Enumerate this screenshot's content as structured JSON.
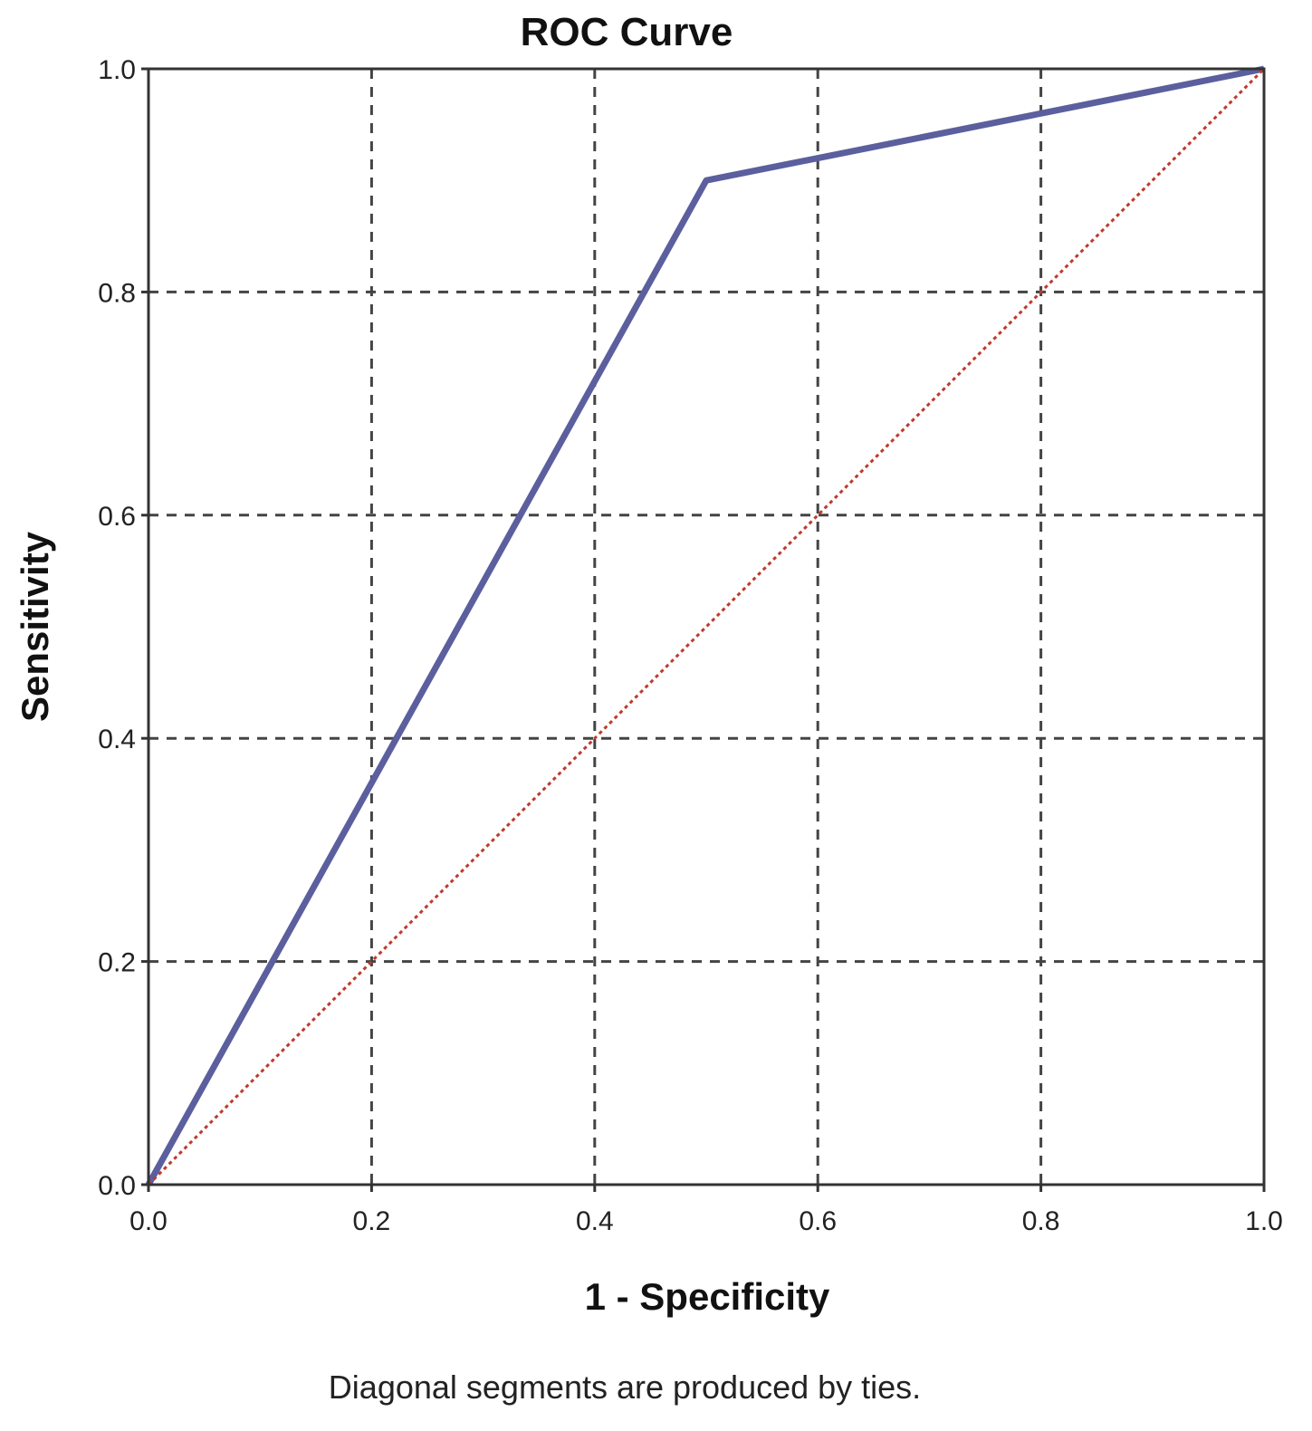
{
  "chart_data": {
    "type": "line",
    "title": "ROC Curve",
    "xlabel": "1 - Specificity",
    "ylabel": "Sensitivity",
    "xlim": [
      0,
      1
    ],
    "ylim": [
      0,
      1
    ],
    "x_ticks": [
      "0.0",
      "0.2",
      "0.4",
      "0.6",
      "0.8",
      "1.0"
    ],
    "y_ticks": [
      "0.0",
      "0.2",
      "0.4",
      "0.6",
      "0.8",
      "1.0"
    ],
    "grid": true,
    "grid_style": "dashed",
    "series": [
      {
        "role": "roc-curve",
        "color": "#5b5f9e",
        "style": "solid",
        "points": [
          [
            0.0,
            0.0
          ],
          [
            0.5,
            0.9
          ],
          [
            1.0,
            1.0
          ]
        ]
      },
      {
        "role": "reference-line",
        "color": "#c0392b",
        "style": "dotted",
        "points": [
          [
            0.0,
            0.0
          ],
          [
            1.0,
            1.0
          ]
        ]
      }
    ],
    "footnote": "Diagonal segments are produced by ties."
  },
  "colors": {
    "background": "#ffffff",
    "frame": "#333333",
    "grid": "#444444",
    "text": "#111111"
  }
}
